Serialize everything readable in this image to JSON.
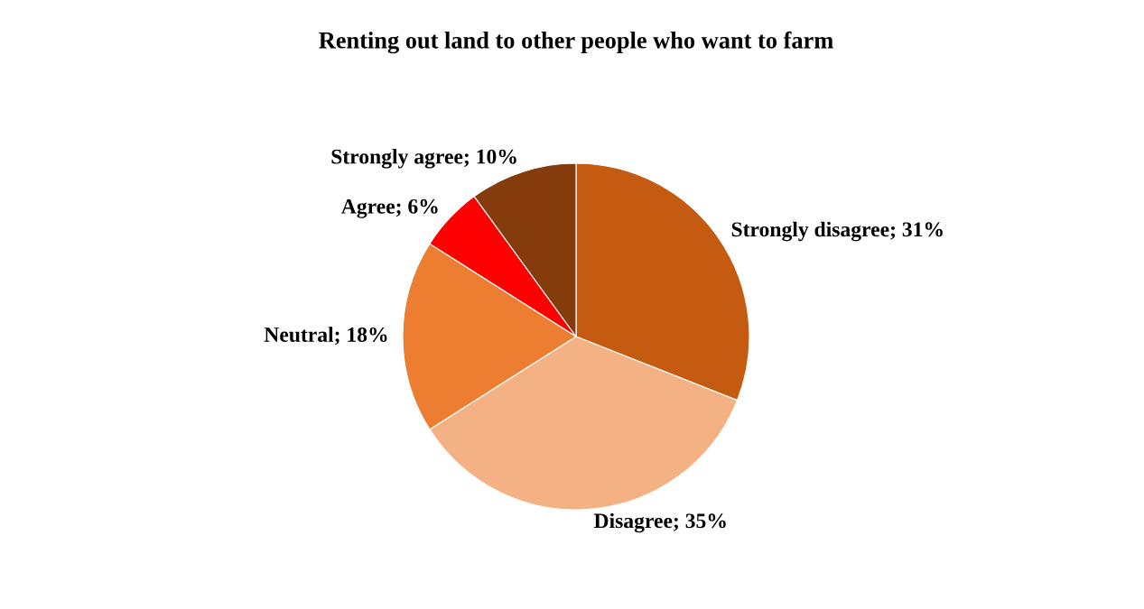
{
  "chart_data": {
    "type": "pie",
    "title": "Renting out land to other people who want to farm",
    "categories": [
      "Strongly disagree",
      "Disagree",
      "Neutral",
      "Agree",
      "Strongly agree"
    ],
    "values": [
      31,
      35,
      18,
      6,
      10
    ],
    "value_labels": [
      "31%",
      "35%",
      "18%",
      "6%",
      "10%"
    ],
    "colors": [
      "#c55a11",
      "#f4b183",
      "#ed7d31",
      "#ff0000",
      "#843c0c"
    ],
    "legend": false
  }
}
